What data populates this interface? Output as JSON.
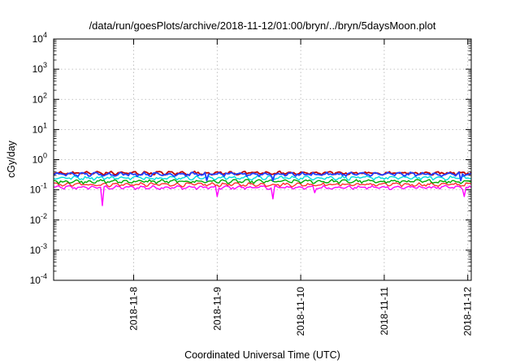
{
  "chart_data": {
    "type": "line",
    "title": "/data/run/goesPlots/archive/2018-11-12/01:00/bryn/../bryn/5daysMoon.plot",
    "xlabel": "Coordinated Universal Time (UTC)",
    "ylabel": "cGy/day",
    "yscale": "log",
    "ylim": [
      0.0001,
      10000
    ],
    "y_tick_values": [
      -4,
      -3,
      -2,
      -1,
      0,
      1,
      2,
      3,
      4
    ],
    "y_tick_base": "10",
    "xlim": [
      "2018-11-07 01:00",
      "2018-11-12 01:00"
    ],
    "x_ticks": [
      {
        "label": "2018-11-8",
        "value": "2018-11-08 00:00"
      },
      {
        "label": "2018-11-9",
        "value": "2018-11-09 00:00"
      },
      {
        "label": "2018-11-10",
        "value": "2018-11-10 00:00"
      },
      {
        "label": "2018-11-11",
        "value": "2018-11-11 00:00"
      },
      {
        "label": "2018-11-12",
        "value": "2018-11-12 00:00"
      }
    ],
    "grid": true,
    "series": [
      {
        "color": "#ff00ff",
        "base": 0.12,
        "dips": [
          {
            "t": "2018-11-07 15:00",
            "v": 0.03
          },
          {
            "t": "2018-11-09 00:00",
            "v": 0.06
          },
          {
            "t": "2018-11-09 16:00",
            "v": 0.05
          },
          {
            "t": "2018-11-10 04:00",
            "v": 0.08
          },
          {
            "t": "2018-11-11 23:00",
            "v": 0.06
          }
        ]
      },
      {
        "color": "#ff3030",
        "base": 0.15,
        "dips": []
      },
      {
        "color": "#00aa00",
        "base": 0.19,
        "dips": []
      },
      {
        "color": "#00dddd",
        "base": 0.25,
        "dips": []
      },
      {
        "color": "#c00000",
        "base": 0.36,
        "dips": []
      },
      {
        "color": "#2040ff",
        "base": 0.33,
        "dips": [
          {
            "t": "2018-11-08 21:00",
            "v": 0.2
          },
          {
            "t": "2018-11-09 16:00",
            "v": 0.2
          },
          {
            "t": "2018-11-11 22:00",
            "v": 0.2
          }
        ]
      }
    ]
  }
}
